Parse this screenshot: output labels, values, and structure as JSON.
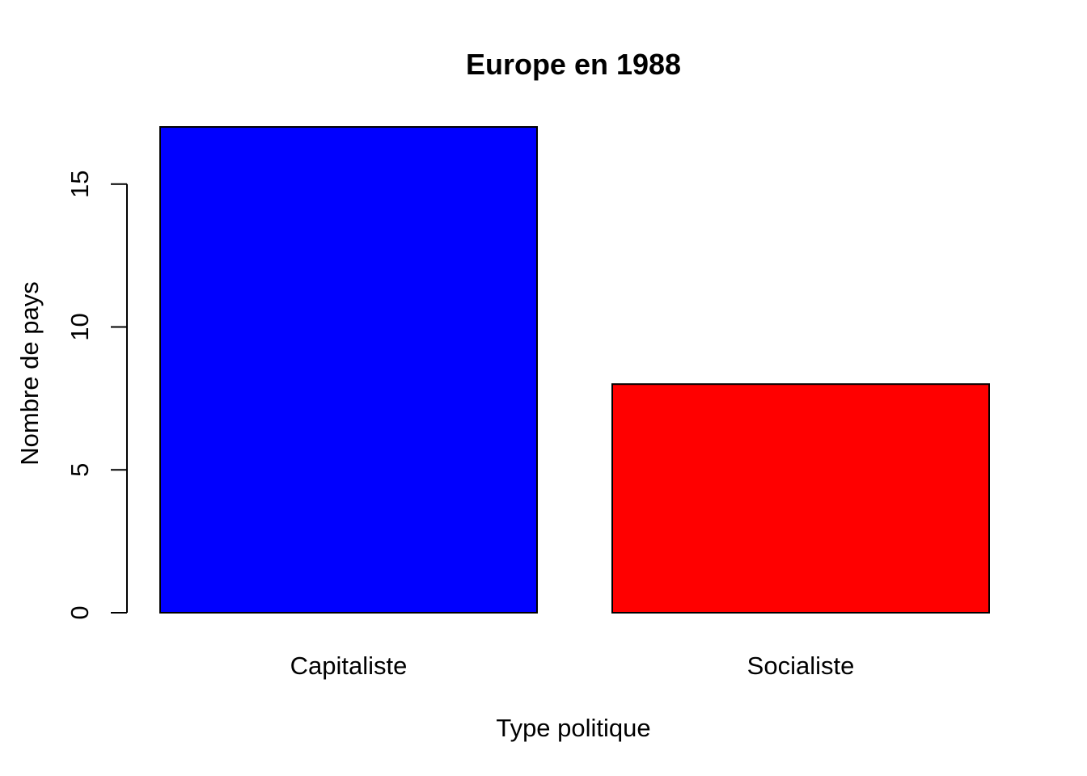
{
  "chart_data": {
    "type": "bar",
    "title": "Europe en 1988",
    "xlabel": "Type politique",
    "ylabel": "Nombre de pays",
    "categories": [
      "Capitaliste",
      "Socialiste"
    ],
    "values": [
      17,
      8
    ],
    "colors": [
      "#0000ff",
      "#ff0000"
    ],
    "ylim": [
      0,
      17
    ],
    "yticks": [
      0,
      5,
      10,
      15
    ],
    "ytick_labels": [
      "0",
      "5",
      "10",
      "15"
    ],
    "grid": false,
    "legend": "none"
  }
}
